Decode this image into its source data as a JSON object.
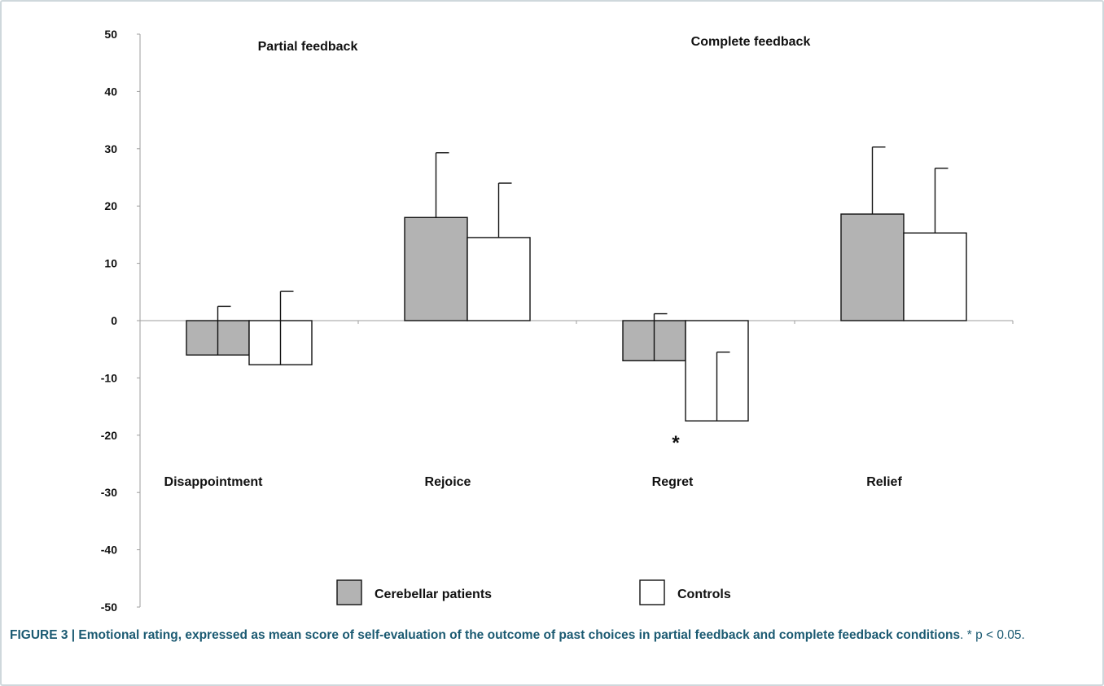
{
  "chart_data": {
    "type": "bar",
    "categories": [
      "Disappointment",
      "Rejoice",
      "Regret",
      "Relief"
    ],
    "series": [
      {
        "name": "Cerebellar patients",
        "color": "#b3b3b3",
        "values": [
          -6,
          18,
          -7,
          18.6
        ],
        "errors": [
          8.5,
          11.3,
          8.2,
          11.7
        ]
      },
      {
        "name": "Controls",
        "color": "#ffffff",
        "values": [
          -7.7,
          14.5,
          -17.5,
          15.3
        ],
        "errors": [
          12.8,
          9.5,
          12,
          11.3
        ]
      }
    ],
    "ylim": [
      -50,
      50
    ],
    "yticks": [
      50,
      40,
      30,
      20,
      10,
      0,
      -10,
      -20,
      -30,
      -40,
      -50
    ],
    "group_labels": [
      "Partial feedback",
      "Complete feedback"
    ],
    "significance": {
      "category": "Regret",
      "marker": "*"
    },
    "legend": {
      "position": "bottom-center"
    },
    "grid": false
  },
  "caption": {
    "bold": "FIGURE 3 | Emotional rating, expressed as mean score of self-evaluation of the outcome of past choices in partial feedback and complete feedback conditions",
    "note": ". * p < 0.05."
  }
}
